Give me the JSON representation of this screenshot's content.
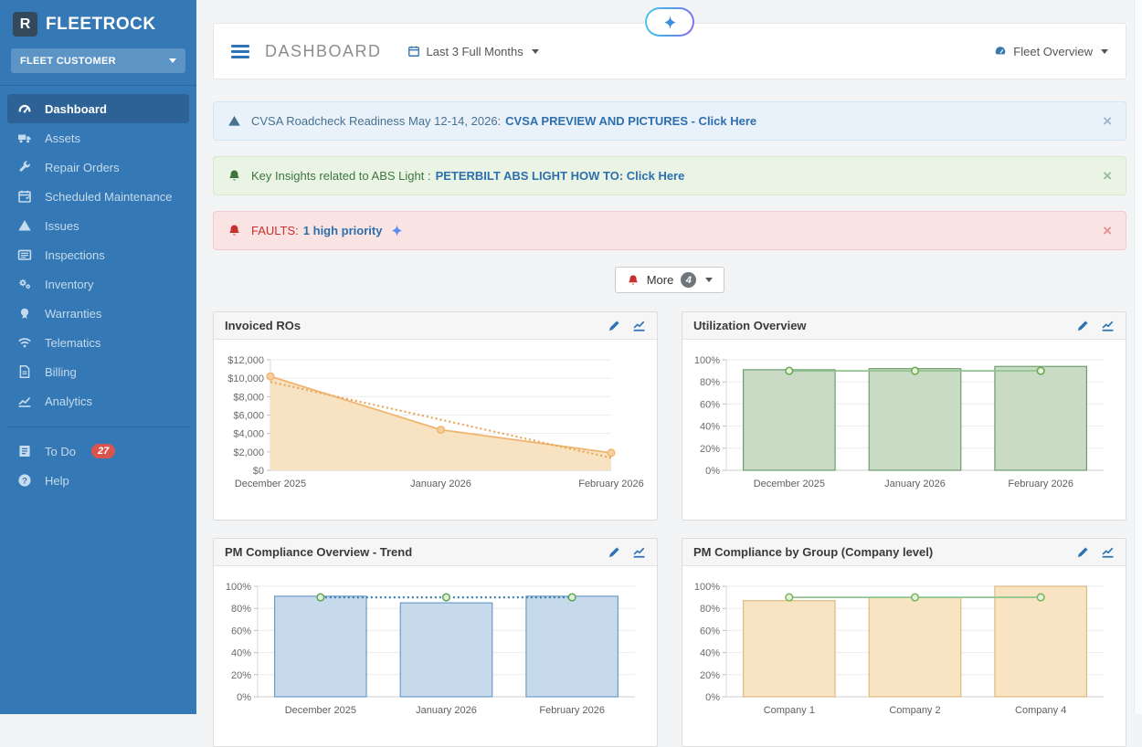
{
  "brand": {
    "name": "FLEETROCK",
    "logo_letter": "R"
  },
  "sidebar": {
    "customer_selector": "FLEET CUSTOMER",
    "items": [
      {
        "label": "Dashboard",
        "icon": "dashboard",
        "active": true
      },
      {
        "label": "Assets",
        "icon": "truck",
        "active": false
      },
      {
        "label": "Repair Orders",
        "icon": "wrench",
        "active": false
      },
      {
        "label": "Scheduled Maintenance",
        "icon": "calendar",
        "active": false
      },
      {
        "label": "Issues",
        "icon": "warning",
        "active": false
      },
      {
        "label": "Inspections",
        "icon": "inspection",
        "active": false
      },
      {
        "label": "Inventory",
        "icon": "cogs",
        "active": false
      },
      {
        "label": "Warranties",
        "icon": "badge",
        "active": false
      },
      {
        "label": "Telematics",
        "icon": "wifi",
        "active": false
      },
      {
        "label": "Billing",
        "icon": "invoice",
        "active": false
      },
      {
        "label": "Analytics",
        "icon": "chart",
        "active": false
      }
    ],
    "footer_items": [
      {
        "label": "To Do",
        "icon": "tasks",
        "badge": "27"
      },
      {
        "label": "Help",
        "icon": "help",
        "badge": null
      }
    ]
  },
  "header": {
    "title": "DASHBOARD",
    "date_filter": "Last 3 Full Months",
    "fleet_selector": "Fleet Overview"
  },
  "alerts": [
    {
      "type": "info",
      "icon": "warning",
      "text": "CVSA Roadcheck Readiness May 12-14, 2026:",
      "link": "CVSA PREVIEW AND PICTURES - Click Here",
      "sparkle": false
    },
    {
      "type": "success",
      "icon": "bell",
      "text": "Key Insights related to ABS Light :",
      "link": "PETERBILT ABS LIGHT HOW TO: Click Here",
      "sparkle": false
    },
    {
      "type": "danger",
      "icon": "bell",
      "text": "FAULTS:",
      "link": "1 high priority",
      "sparkle": true
    }
  ],
  "more_button": {
    "label": "More",
    "count": "4"
  },
  "colors": {
    "sidebar_bg": "#3478b5",
    "sidebar_active": "#2d6296",
    "accent_blue": "#2e74b5",
    "badge_red": "#d9534f",
    "link_blue": "#2e6fad",
    "sparkle_blue": "#5f8bf0"
  },
  "chart_data": [
    {
      "type": "area",
      "title": "Invoiced ROs",
      "categories": [
        "December 2025",
        "January 2026",
        "February 2026"
      ],
      "series": [
        {
          "name": "Invoiced Amount",
          "values": [
            10200,
            4400,
            1900
          ],
          "color": "#efb571",
          "fill": "#f7e2c2",
          "style": "solid",
          "markers": true,
          "marker_fill": "#f6cf9d"
        },
        {
          "name": "Trend",
          "values": [
            9600,
            5500,
            1350
          ],
          "color": "#e8a659",
          "style": "dotted",
          "markers": false
        }
      ],
      "ylim": [
        0,
        12000
      ],
      "ytick_step": 2000,
      "yformat": "currency",
      "grid": true,
      "legend": "none"
    },
    {
      "type": "bar",
      "title": "Utilization Overview",
      "categories": [
        "December 2025",
        "January 2026",
        "February 2026"
      ],
      "values": [
        91,
        92,
        94
      ],
      "bar_fill": "#c9dac5",
      "bar_border": "#6f9d6f",
      "series": [
        {
          "name": "Target",
          "values": [
            90,
            90,
            90
          ],
          "color": "#90c590",
          "style": "solid",
          "markers": true,
          "marker_fill": "#e4f1dc",
          "marker_color": "#6aa84f"
        }
      ],
      "ylim": [
        0,
        100
      ],
      "ytick_step": 20,
      "yformat": "percent",
      "grid": true,
      "legend": "none"
    },
    {
      "type": "bar",
      "title": "PM Compliance Overview - Trend",
      "categories": [
        "December 2025",
        "January 2026",
        "February 2026"
      ],
      "values": [
        91,
        85,
        91
      ],
      "bar_fill": "#c7daec",
      "bar_border": "#6d9cc6",
      "series": [
        {
          "name": "Target",
          "values": [
            90,
            90,
            90
          ],
          "color": "#3e7fb1",
          "style": "dotted",
          "markers": true,
          "marker_fill": "#dff0d8",
          "marker_color": "#5ea75a"
        }
      ],
      "ylim": [
        0,
        100
      ],
      "ytick_step": 20,
      "yformat": "percent",
      "grid": true,
      "legend": "none"
    },
    {
      "type": "bar",
      "title": "PM Compliance by Group (Company level)",
      "categories": [
        "Company 1",
        "Company 2",
        "Company 4"
      ],
      "values": [
        87,
        90,
        100
      ],
      "bar_fill": "#f8e4c2",
      "bar_border": "#deba80",
      "series": [
        {
          "name": "Target",
          "values": [
            90,
            90,
            90
          ],
          "color": "#90c590",
          "style": "solid",
          "markers": true,
          "marker_fill": "#e4f1dc",
          "marker_color": "#7ab55c"
        }
      ],
      "ylim": [
        0,
        100
      ],
      "ytick_step": 20,
      "yformat": "percent",
      "grid": true,
      "legend": "none"
    }
  ]
}
